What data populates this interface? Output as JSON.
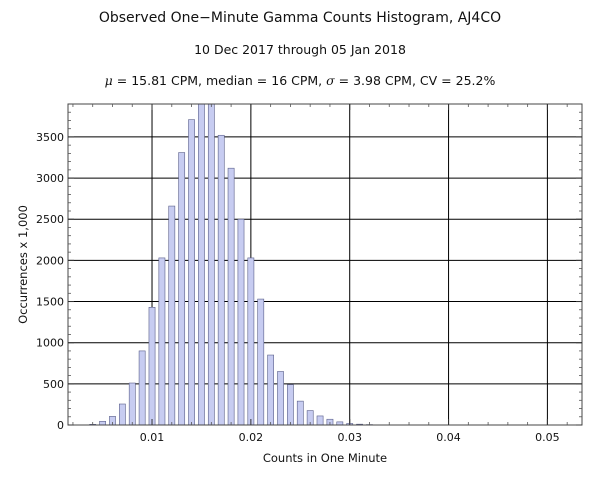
{
  "titles": {
    "main": "Observed One−Minute Gamma Counts Histogram, AJ4CO",
    "dates": "10 Dec 2017 through 05 Jan 2018",
    "stats": {
      "mu_symbol": "μ",
      "mu_text": " = 15.81 CPM,   median = 16 CPM,   ",
      "sigma_symbol": "σ",
      "sigma_text": " = 3.98 CPM,   CV = 25.2%"
    }
  },
  "chart_data": {
    "type": "bar",
    "xlabel": "Counts in One Minute",
    "ylabel": "Occurrences x 1,000",
    "xlim": [
      0.0015,
      0.0535
    ],
    "ylim": [
      0,
      3900
    ],
    "grid": true,
    "bar_color": "#c7ccf1",
    "bar_edge": "#5a5f8a",
    "x_ticks": [
      0.01,
      0.02,
      0.03,
      0.04,
      0.05
    ],
    "x_tick_labels": [
      "0.01",
      "0.02",
      "0.03",
      "0.04",
      "0.05"
    ],
    "y_ticks": [
      0,
      500,
      1000,
      1500,
      2000,
      2500,
      3000,
      3500
    ],
    "y_tick_labels": [
      "0",
      "500",
      "1000",
      "1500",
      "2000",
      "2500",
      "3000",
      "3500"
    ],
    "x": [
      0.004,
      0.005,
      0.006,
      0.007,
      0.008,
      0.009,
      0.01,
      0.011,
      0.012,
      0.013,
      0.014,
      0.015,
      0.016,
      0.017,
      0.018,
      0.019,
      0.02,
      0.021,
      0.022,
      0.023,
      0.024,
      0.025,
      0.026,
      0.027,
      0.028,
      0.029,
      0.03,
      0.031,
      0.032,
      0.033
    ],
    "values": [
      8,
      45,
      105,
      255,
      510,
      900,
      1430,
      2030,
      2660,
      3310,
      3710,
      3920,
      3940,
      3520,
      3120,
      2500,
      2030,
      1530,
      850,
      650,
      490,
      290,
      175,
      110,
      70,
      38,
      18,
      10,
      5,
      2
    ]
  }
}
